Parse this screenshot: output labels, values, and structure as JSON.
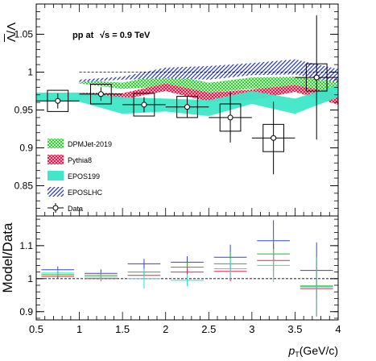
{
  "chart_data": [
    {
      "type": "line",
      "ylabel": "Λ̄/Λ",
      "ylabel_parts": {
        "top": "Λ",
        "bottom": "Λ",
        "sep": "/"
      },
      "annotation": {
        "system": "pp at",
        "energy": "√s = 0.9 TeV"
      },
      "xlim": [
        0.5,
        4.0
      ],
      "ylim": [
        0.81,
        1.09
      ],
      "yticks": [
        "0.85",
        "0.9",
        "0.95",
        "1",
        "1.05"
      ],
      "reference_line": 1.0,
      "series": [
        {
          "name": "DPMJet-2019",
          "style": "crosshatch",
          "color": "#22cc22",
          "x": [
            1.0,
            1.5,
            2.0,
            2.5,
            3.0,
            3.5,
            4.0
          ],
          "lower": [
            0.985,
            0.978,
            0.981,
            0.973,
            0.978,
            0.977,
            0.972
          ],
          "upper": [
            0.99,
            0.986,
            0.998,
            0.986,
            0.993,
            0.994,
            0.988
          ]
        },
        {
          "name": "Pythia8",
          "style": "crosshatch",
          "color": "#ee1144",
          "x": [
            1.0,
            1.5,
            2.0,
            2.5,
            3.0,
            3.5,
            4.0
          ],
          "lower": [
            0.968,
            0.964,
            0.975,
            0.961,
            0.963,
            0.974,
            0.957
          ],
          "upper": [
            0.973,
            0.972,
            0.985,
            0.973,
            0.977,
            0.983,
            0.972
          ]
        },
        {
          "name": "EPOS199",
          "style": "solid",
          "color": "#22e0c0",
          "x": [
            0.5,
            1.0,
            1.5,
            2.0,
            2.5,
            3.0,
            3.5,
            4.0
          ],
          "lower": [
            0.962,
            0.961,
            0.945,
            0.948,
            0.942,
            0.958,
            0.945,
            0.967
          ],
          "upper": [
            0.973,
            0.973,
            0.967,
            0.965,
            0.963,
            0.975,
            0.965,
            0.983
          ]
        },
        {
          "name": "EPOSLHC",
          "style": "hatch",
          "color": "#2233cc",
          "x": [
            1.0,
            1.5,
            2.0,
            2.5,
            3.0,
            3.5,
            4.0
          ],
          "lower": [
            0.987,
            0.99,
            0.992,
            0.99,
            0.996,
            0.997,
            0.986
          ],
          "upper": [
            0.99,
            0.994,
            1.006,
            1.008,
            1.012,
            1.017,
            1.004
          ]
        }
      ],
      "data": {
        "name": "Data",
        "x": [
          0.75,
          1.25,
          1.75,
          2.25,
          2.75,
          3.25,
          3.75
        ],
        "y": [
          0.962,
          0.971,
          0.957,
          0.954,
          0.94,
          0.913,
          0.993
        ],
        "stat_err": [
          0.01,
          0.009,
          0.01,
          0.014,
          0.033,
          0.048,
          0.082
        ],
        "sys_err": [
          0.014,
          0.013,
          0.015,
          0.014,
          0.018,
          0.018,
          0.018
        ],
        "x_halfwidth": 0.25,
        "sys_box_halfwidth": 0.12
      }
    },
    {
      "type": "line",
      "ylabel": "Model/Data",
      "xlabel": {
        "p": "p",
        "sub": "T",
        "unit": "(GeV/c)"
      },
      "xlim": [
        0.5,
        4.0
      ],
      "ylim": [
        0.875,
        1.19
      ],
      "xticks": [
        "0.5",
        "1",
        "1.5",
        "2",
        "2.5",
        "3",
        "3.5",
        "4"
      ],
      "yticks": [
        "0.9",
        "1",
        "1.1"
      ],
      "reference_line": 1.0,
      "bin_edges": [
        0.5,
        1.0,
        1.5,
        2.0,
        2.5,
        3.0,
        3.5,
        4.0
      ],
      "series": [
        {
          "name": "EPOSLHC",
          "color": "#3344dd",
          "values": [
            1.027,
            1.016,
            1.045,
            1.05,
            1.065,
            1.115,
            1.025
          ],
          "errors": [
            0.01,
            0.012,
            0.015,
            0.018,
            0.038,
            0.062,
            0.085
          ]
        },
        {
          "name": "DPMJet-2019",
          "color": "#22bb22",
          "values": [
            1.012,
            1.01,
            1.02,
            1.035,
            1.045,
            1.075,
            0.978
          ],
          "errors": [
            0.008,
            0.01,
            0.01,
            0.015,
            0.035,
            0.05,
            0.09
          ]
        },
        {
          "name": "Pythia8",
          "color": "#ee2244",
          "values": [
            1.007,
            1.0,
            1.01,
            1.02,
            1.022,
            1.055,
            0.97
          ],
          "errors": [
            0.008,
            0.008,
            0.01,
            0.015,
            0.03,
            0.05,
            0.085
          ]
        },
        {
          "name": "EPOS199",
          "color": "#33ddcc",
          "values": [
            1.017,
            1.005,
            1.0,
            0.995,
            1.03,
            1.04,
            0.975
          ],
          "errors": [
            0.01,
            0.01,
            0.03,
            0.018,
            0.03,
            0.05,
            0.09
          ]
        }
      ]
    }
  ]
}
